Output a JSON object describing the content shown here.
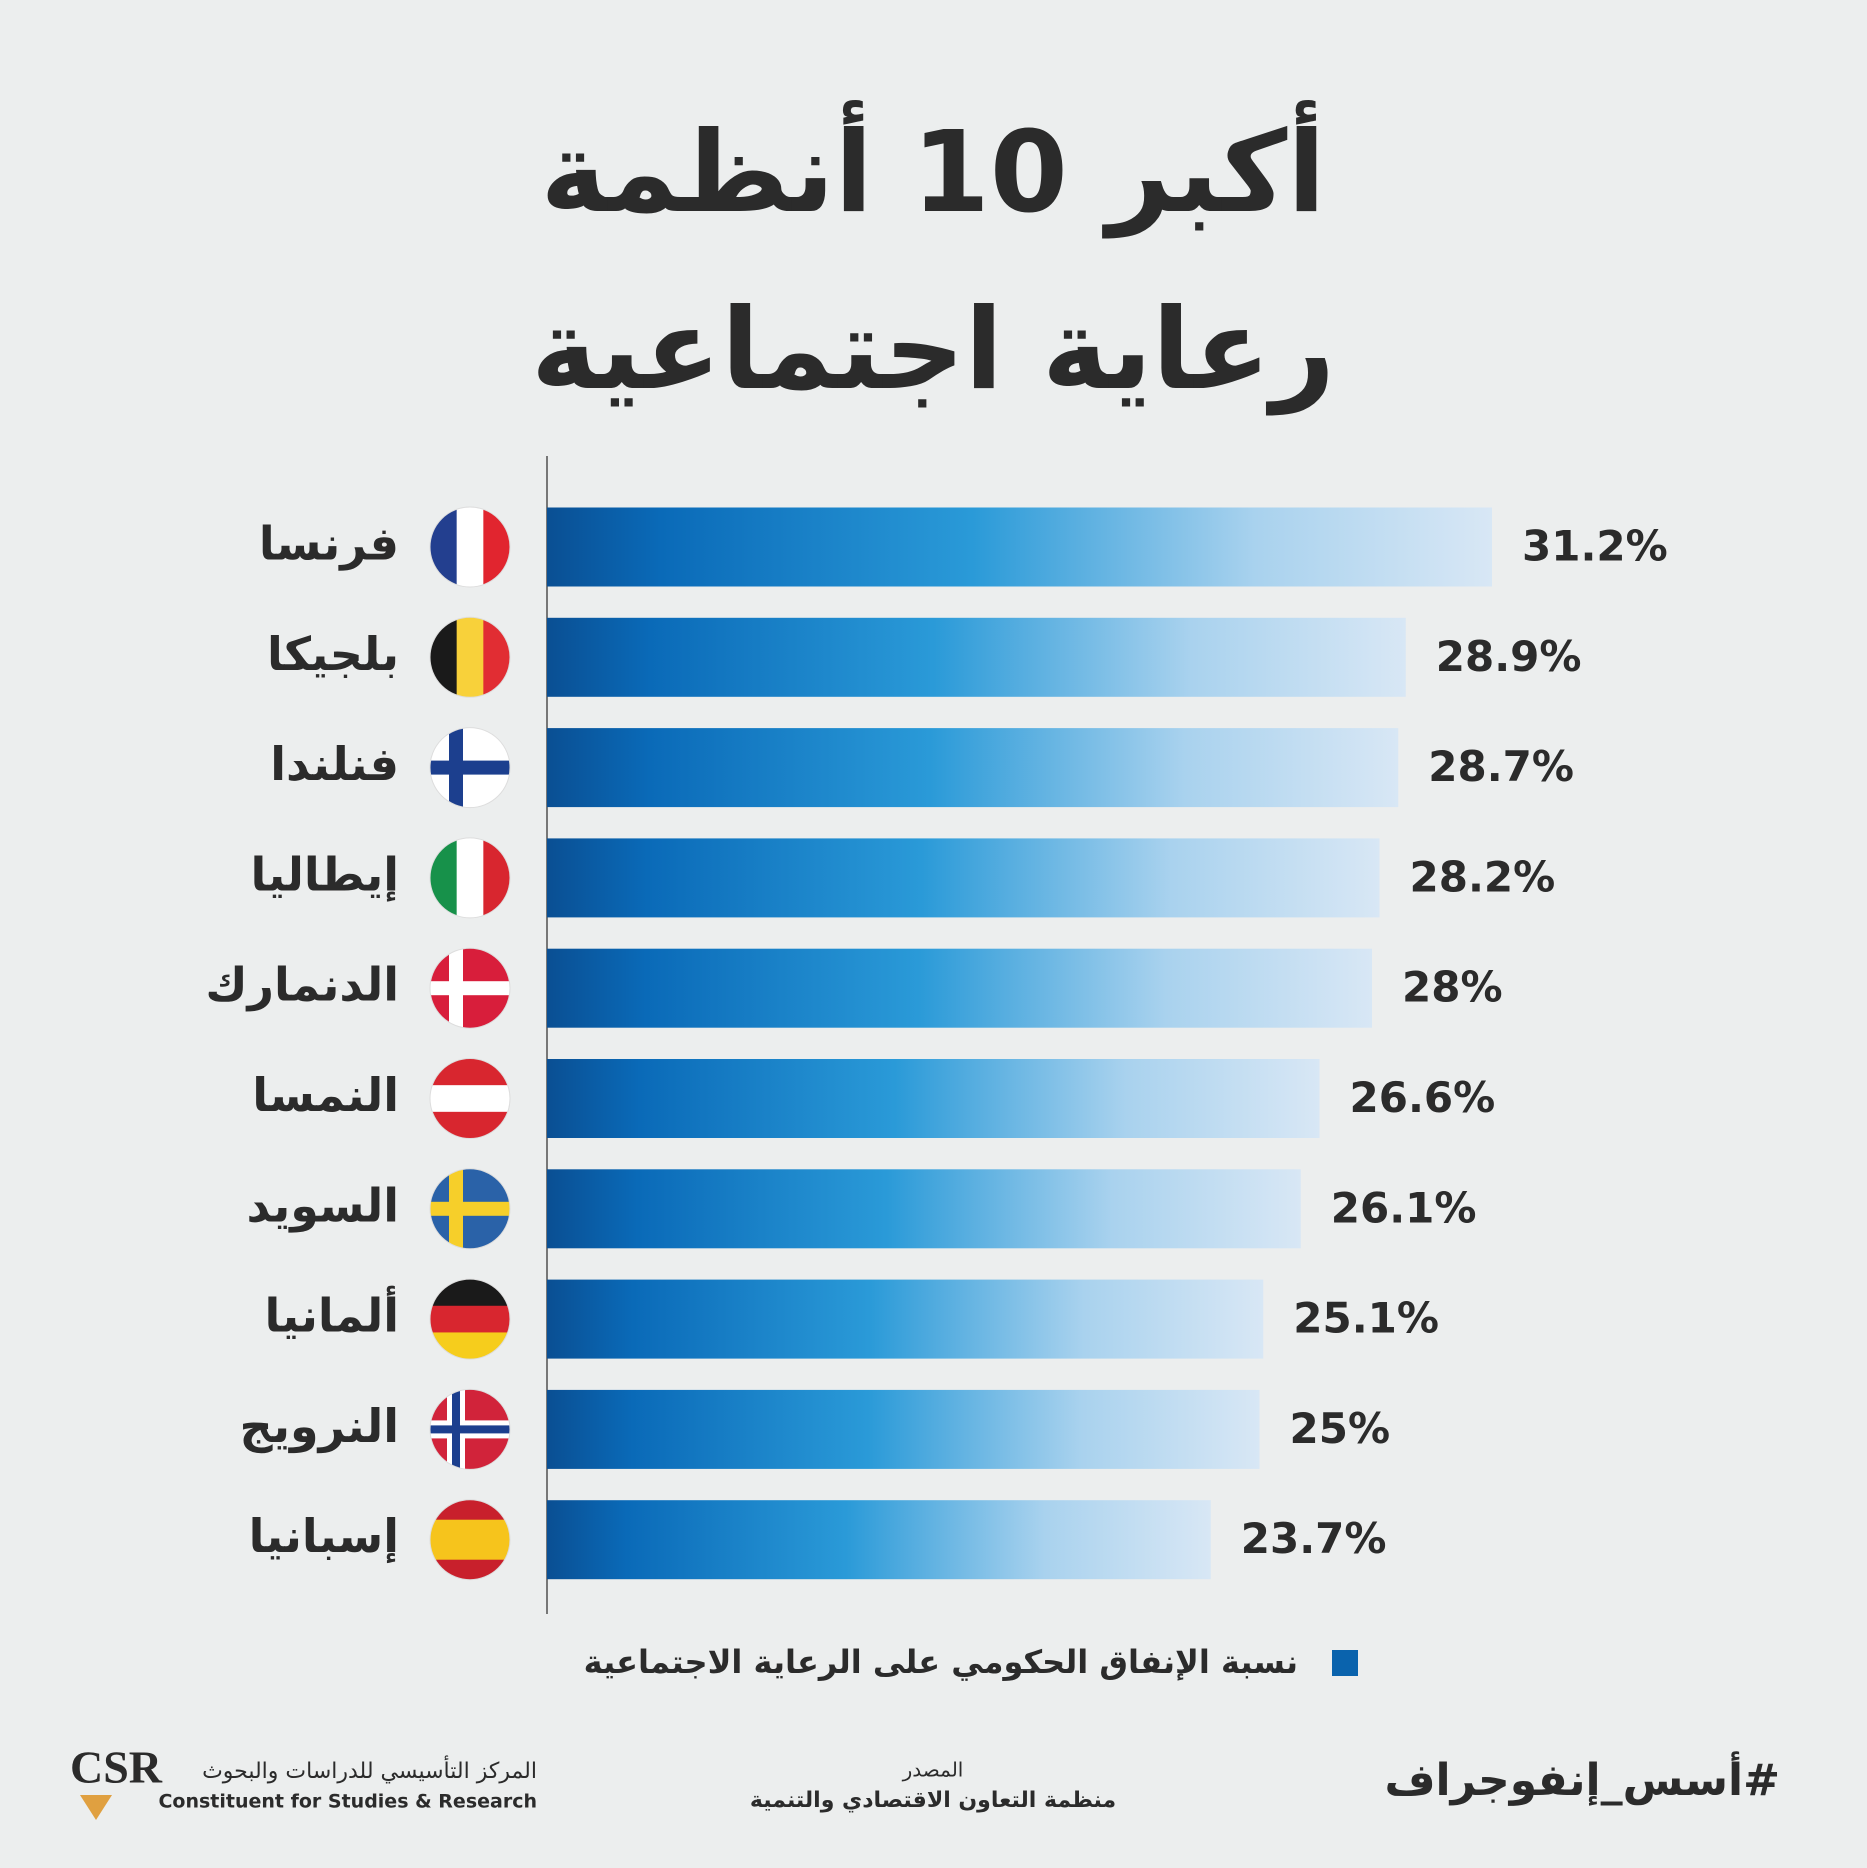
{
  "chart_data": {
    "type": "bar",
    "orientation": "horizontal",
    "title_lines": [
      "أكبر 10 أنظمة",
      "رعاية اجتماعية"
    ],
    "categories": [
      "فرنسا",
      "بلجيكا",
      "فنلندا",
      "إيطاليا",
      "الدنمارك",
      "النمسا",
      "السويد",
      "ألمانيا",
      "النرويج",
      "إسبانيا"
    ],
    "series": [
      {
        "name": "نسبة الإنفاق الحكومي على الرعاية الاجتماعية",
        "color": "#0a63ad",
        "values": [
          31.2,
          28.9,
          28.7,
          28.2,
          28,
          26.6,
          26.1,
          25.1,
          25,
          23.7
        ],
        "value_labels": [
          "31.2%",
          "28.9%",
          "28.7%",
          "28.2%",
          "28%",
          "26.6%",
          "26.1%",
          "25.1%",
          "25%",
          "23.7%"
        ]
      }
    ],
    "xlim": [
      6,
      40
    ],
    "source_label": "المصدر",
    "source": "منظمة التعاون الاقتصادي والتنمية",
    "hashtag": "#أسس_إنفوجراف",
    "logo": {
      "mark": "CSR",
      "name_ar": "المركز التأسيسي للدراسات والبحوث",
      "name_en": "Constituent for Studies & Research"
    }
  }
}
